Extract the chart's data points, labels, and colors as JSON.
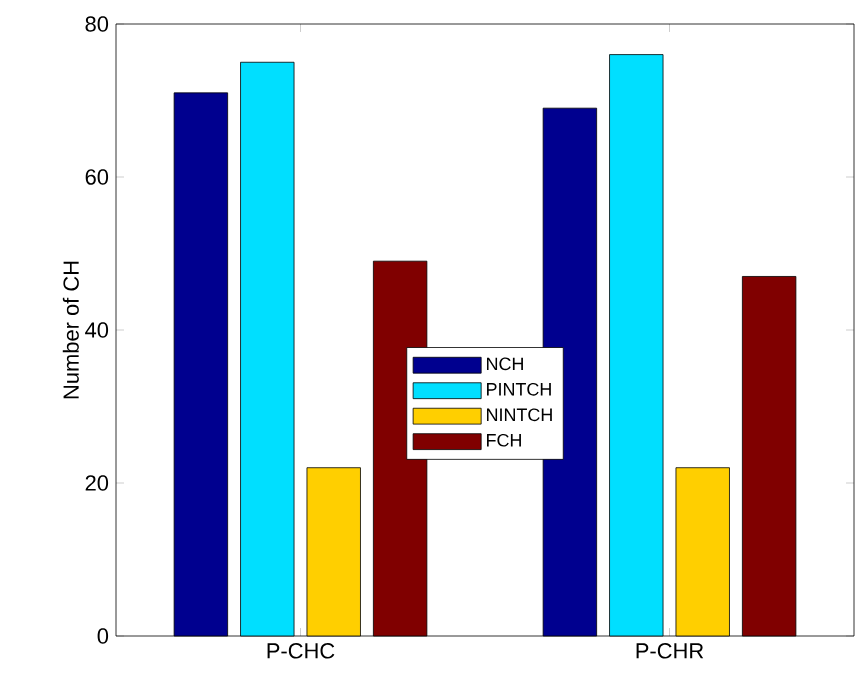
{
  "chart_data": {
    "type": "bar",
    "ylabel": "Number of CH",
    "categories": [
      "P-CHC",
      "P-CHR"
    ],
    "series": [
      {
        "name": "NCH",
        "color": "#00008f",
        "values": [
          71,
          69
        ]
      },
      {
        "name": "PINTCH",
        "color": "#00dfff",
        "values": [
          75,
          76
        ]
      },
      {
        "name": "NINTCH",
        "color": "#ffcf00",
        "values": [
          22,
          22
        ]
      },
      {
        "name": "FCH",
        "color": "#800000",
        "values": [
          49,
          47
        ]
      }
    ],
    "ylim": [
      0,
      80
    ],
    "yticks": [
      0,
      20,
      40,
      60,
      80
    ],
    "legend": "center",
    "grid": false
  }
}
